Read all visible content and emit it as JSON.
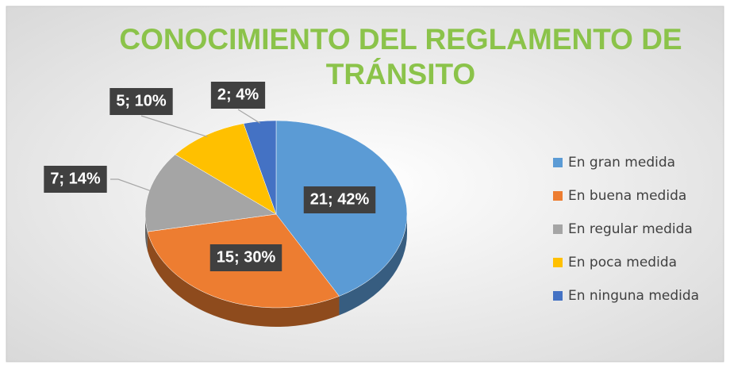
{
  "chart_data": {
    "type": "pie",
    "title": "CONOCIMIENTO DEL REGLAMENTO DE TRÁNSITO",
    "categories": [
      "En gran medida",
      "En buena medida",
      "En regular medida",
      "En poca medida",
      "En ninguna medida"
    ],
    "values": [
      21,
      15,
      7,
      5,
      2
    ],
    "value_labels": [
      "21; 42%",
      "15; 30%",
      "7; 14%",
      "5; 10%",
      "2; 4%"
    ],
    "colors": [
      "#5B9BD5",
      "#ED7D31",
      "#A5A5A5",
      "#FFC000",
      "#4472C4"
    ],
    "legend": "right"
  }
}
